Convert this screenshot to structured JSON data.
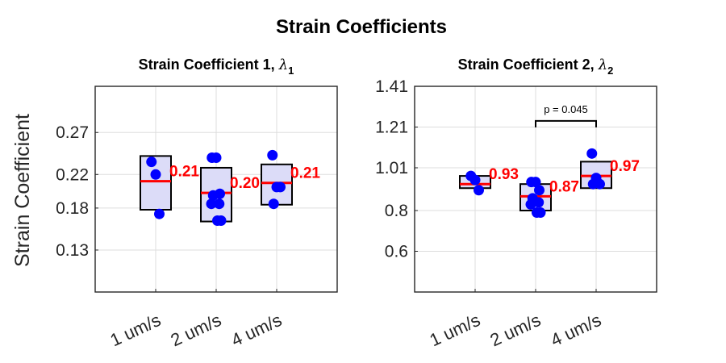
{
  "figure": {
    "title": "Strain Coefficients"
  },
  "colors": {
    "box_fill": "#dcdcf8",
    "point": "#0000ff",
    "median": "#ff0000",
    "grid": "#dddddd"
  },
  "chart_data": [
    {
      "type": "box+scatter",
      "title": "Strain Coefficient 1, ",
      "title_symbol": "λ",
      "title_subscript": "1",
      "ylabel": "Strain Coefficient",
      "xlabel": "",
      "categories": [
        "1 um/s",
        "2 um/s",
        "4 um/s"
      ],
      "ylim": [
        0.08,
        0.325
      ],
      "yticks": [
        0.13,
        0.18,
        0.22,
        0.27
      ],
      "ytick_labels": [
        "0.13",
        "0.18",
        "0.22",
        "0.27"
      ],
      "grid": true,
      "groups": [
        {
          "points": [
            0.235,
            0.22,
            0.173
          ],
          "q1": 0.178,
          "q3": 0.242,
          "median": 0.212,
          "median_label": "0.21"
        },
        {
          "points": [
            0.24,
            0.24,
            0.197,
            0.195,
            0.185,
            0.185,
            0.165,
            0.165
          ],
          "q1": 0.164,
          "q3": 0.228,
          "median": 0.198,
          "median_label": "0.20"
        },
        {
          "points": [
            0.243,
            0.205,
            0.205,
            0.185
          ],
          "q1": 0.184,
          "q3": 0.232,
          "median": 0.21,
          "median_label": "0.21"
        }
      ]
    },
    {
      "type": "box+scatter",
      "title": "Strain Coefficient 2, ",
      "title_symbol": "λ",
      "title_subscript": "2",
      "ylabel": "",
      "xlabel": "",
      "categories": [
        "1 um/s",
        "2 um/s",
        "4 um/s"
      ],
      "ylim": [
        0.4,
        1.41
      ],
      "yticks": [
        0.6,
        0.8,
        1.01,
        1.21,
        1.41
      ],
      "ytick_labels": [
        "0.6",
        "0.8",
        "1.01",
        "1.21",
        "1.41"
      ],
      "grid": true,
      "groups": [
        {
          "points": [
            0.97,
            0.95,
            0.9
          ],
          "q1": 0.91,
          "q3": 0.97,
          "median": 0.93,
          "median_label": "0.93"
        },
        {
          "points": [
            0.94,
            0.94,
            0.9,
            0.86,
            0.84,
            0.83,
            0.79,
            0.79
          ],
          "q1": 0.8,
          "q3": 0.93,
          "median": 0.87,
          "median_label": "0.87"
        },
        {
          "points": [
            1.08,
            0.96,
            0.93,
            0.93
          ],
          "q1": 0.91,
          "q3": 1.04,
          "median": 0.97,
          "median_label": "0.97"
        }
      ],
      "annotations": [
        {
          "text": "p = 0.045",
          "from_category": 1,
          "to_category": 2,
          "y": 1.24
        }
      ]
    }
  ]
}
